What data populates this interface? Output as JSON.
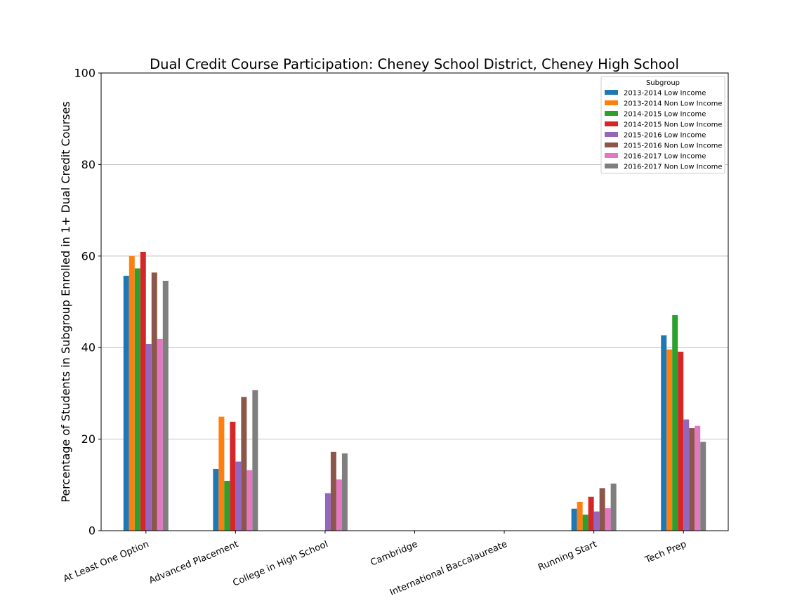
{
  "chart_data": {
    "type": "bar",
    "title": "Dual Credit Course Participation: Cheney School District, Cheney High School",
    "xlabel": "",
    "ylabel": "Percentage of Students in Subgroup Enrolled in 1+ Dual Credit Courses",
    "ylim": [
      0,
      100
    ],
    "yticks": [
      "0",
      "20",
      "40",
      "60",
      "80",
      "100"
    ],
    "grid": "horizontal",
    "legend": {
      "title": "Subgroup",
      "placement": "top-right"
    },
    "categories": [
      "At Least One Option",
      "Advanced Placement",
      "College in High School",
      "Cambridge",
      "International Baccalaureate",
      "Running Start",
      "Tech Prep"
    ],
    "series": [
      {
        "name": "2013-2014 Low Income",
        "color": "#1f77b4",
        "values": [
          55.7,
          13.5,
          0,
          0,
          0,
          4.8,
          42.7
        ]
      },
      {
        "name": "2013-2014 Non Low Income",
        "color": "#ff7f0e",
        "values": [
          60.0,
          24.9,
          0,
          0,
          0,
          6.3,
          39.6
        ]
      },
      {
        "name": "2014-2015 Low Income",
        "color": "#2ca02c",
        "values": [
          57.3,
          10.9,
          0,
          0,
          0,
          3.5,
          47.1
        ]
      },
      {
        "name": "2014-2015 Non Low Income",
        "color": "#d62728",
        "values": [
          60.9,
          23.8,
          0,
          0,
          0,
          7.4,
          39.1
        ]
      },
      {
        "name": "2015-2016 Low Income",
        "color": "#9467bd",
        "values": [
          40.8,
          15.1,
          8.2,
          0,
          0,
          4.2,
          24.3
        ]
      },
      {
        "name": "2015-2016 Non Low Income",
        "color": "#8c564b",
        "values": [
          56.4,
          29.2,
          17.2,
          0,
          0,
          9.3,
          22.4
        ]
      },
      {
        "name": "2016-2017 Low Income",
        "color": "#e377c2",
        "values": [
          41.9,
          13.2,
          11.2,
          0,
          0,
          4.9,
          22.9
        ]
      },
      {
        "name": "2016-2017 Non Low Income",
        "color": "#7f7f7f",
        "values": [
          54.6,
          30.7,
          16.9,
          0,
          0,
          10.3,
          19.4
        ]
      }
    ]
  }
}
